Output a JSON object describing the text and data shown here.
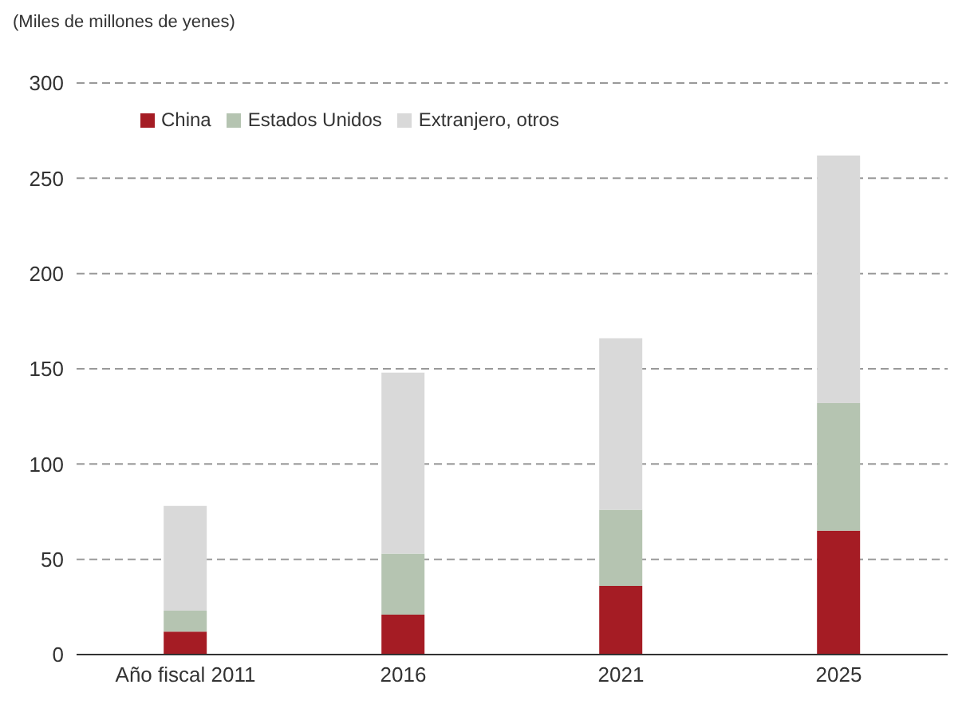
{
  "chart_data": {
    "type": "bar",
    "stacked": true,
    "ylabel": "(Miles de millones de yenes)",
    "categories": [
      "Año fiscal 2011",
      "2016",
      "2021",
      "2025"
    ],
    "series": [
      {
        "name": "China",
        "color": "#a51c24",
        "values": [
          12,
          21,
          36,
          65
        ]
      },
      {
        "name": "Estados Unidos",
        "color": "#b5c4b1",
        "values": [
          11,
          32,
          40,
          67
        ]
      },
      {
        "name": "Extranjero, otros",
        "color": "#d9d9d9",
        "values": [
          55,
          95,
          90,
          130
        ]
      }
    ],
    "ylim": [
      0,
      300
    ],
    "yticks": [
      0,
      50,
      100,
      150,
      200,
      250,
      300
    ],
    "grid": "y",
    "legend": "top left"
  }
}
